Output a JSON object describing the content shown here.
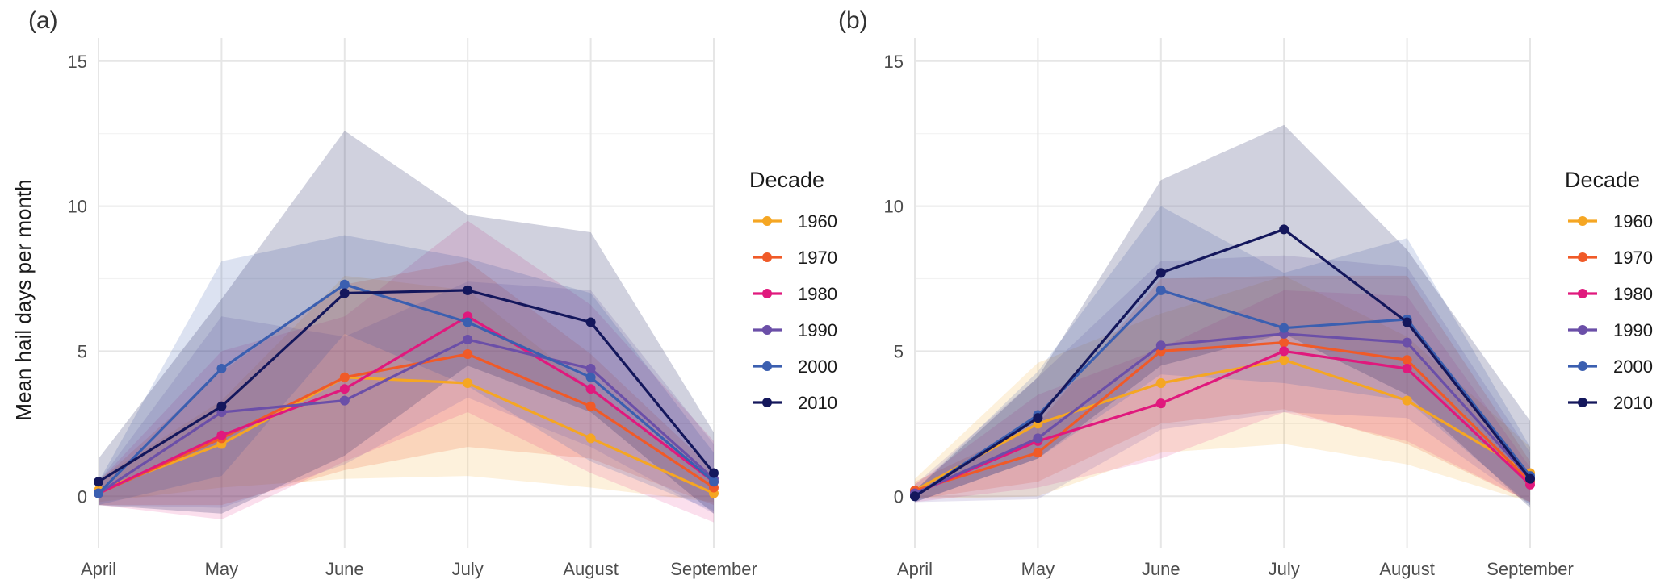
{
  "chart_data": [
    {
      "type": "line",
      "panel_label": "(a)",
      "categories": [
        "April",
        "May",
        "June",
        "July",
        "August",
        "September"
      ],
      "ylabel": "Mean hail days per month",
      "ylim": [
        -1.8,
        15.8
      ],
      "yticks": [
        0,
        5,
        10,
        15
      ],
      "legend_title": "Decade",
      "series": [
        {
          "name": "1960",
          "color": "#F5A623",
          "values": [
            0.2,
            1.8,
            4.1,
            3.9,
            2.0,
            0.1
          ],
          "lower": [
            -0.2,
            0.3,
            0.6,
            0.7,
            0.3,
            -0.2
          ],
          "upper": [
            0.6,
            3.3,
            7.6,
            7.1,
            3.7,
            0.6
          ]
        },
        {
          "name": "1970",
          "color": "#F05A28",
          "values": [
            0.1,
            2.0,
            4.1,
            4.9,
            3.1,
            0.3
          ],
          "lower": [
            -0.3,
            -0.3,
            0.9,
            1.7,
            1.3,
            -0.3
          ],
          "upper": [
            0.5,
            4.3,
            7.3,
            8.1,
            4.9,
            0.9
          ]
        },
        {
          "name": "1980",
          "color": "#E0197D",
          "values": [
            0.1,
            2.1,
            3.7,
            6.2,
            3.7,
            0.5
          ],
          "lower": [
            -0.3,
            -0.8,
            1.2,
            2.9,
            0.8,
            -0.9
          ],
          "upper": [
            0.5,
            5.0,
            6.2,
            9.5,
            6.6,
            1.9
          ]
        },
        {
          "name": "1990",
          "color": "#6B4FA8",
          "values": [
            0.1,
            2.9,
            3.3,
            5.4,
            4.4,
            0.6
          ],
          "lower": [
            -0.3,
            -0.4,
            1.1,
            3.4,
            1.7,
            -0.6
          ],
          "upper": [
            0.5,
            6.2,
            5.5,
            7.4,
            7.1,
            1.8
          ]
        },
        {
          "name": "2000",
          "color": "#3B5FB0",
          "values": [
            0.1,
            4.4,
            7.3,
            6.0,
            4.1,
            0.5
          ],
          "lower": [
            -0.3,
            0.7,
            5.6,
            3.8,
            1.2,
            -0.5
          ],
          "upper": [
            0.5,
            8.1,
            9.0,
            8.2,
            7.0,
            1.5
          ]
        },
        {
          "name": "2010",
          "color": "#14175C",
          "values": [
            0.5,
            3.1,
            7.0,
            7.1,
            6.0,
            0.8
          ],
          "lower": [
            -0.3,
            -0.6,
            1.4,
            4.5,
            2.9,
            -0.6
          ],
          "upper": [
            1.3,
            6.8,
            12.6,
            9.7,
            9.1,
            2.2
          ]
        }
      ]
    },
    {
      "type": "line",
      "panel_label": "(b)",
      "categories": [
        "April",
        "May",
        "June",
        "July",
        "August",
        "September"
      ],
      "ylabel": "",
      "ylim": [
        -1.8,
        15.8
      ],
      "yticks": [
        0,
        5,
        10,
        15
      ],
      "legend_title": "Decade",
      "series": [
        {
          "name": "1960",
          "color": "#F5A623",
          "values": [
            0.2,
            2.5,
            3.9,
            4.7,
            3.3,
            0.8
          ],
          "lower": [
            -0.1,
            0.0,
            1.5,
            1.8,
            1.1,
            -0.2
          ],
          "upper": [
            0.6,
            4.6,
            6.3,
            7.6,
            5.5,
            1.7
          ]
        },
        {
          "name": "1970",
          "color": "#F05A28",
          "values": [
            0.2,
            1.5,
            5.0,
            5.3,
            4.7,
            0.5
          ],
          "lower": [
            -0.1,
            0.5,
            2.5,
            3.0,
            1.8,
            -0.2
          ],
          "upper": [
            0.5,
            2.5,
            7.5,
            7.6,
            7.6,
            1.2
          ]
        },
        {
          "name": "1980",
          "color": "#E0197D",
          "values": [
            0.1,
            1.9,
            3.2,
            5.0,
            4.4,
            0.4
          ],
          "lower": [
            -0.2,
            0.3,
            1.3,
            2.9,
            1.9,
            -0.2
          ],
          "upper": [
            0.4,
            3.5,
            5.1,
            7.1,
            6.9,
            1.0
          ]
        },
        {
          "name": "1990",
          "color": "#6B4FA8",
          "values": [
            0.1,
            2.0,
            5.2,
            5.6,
            5.3,
            0.6
          ],
          "lower": [
            -0.2,
            -0.1,
            2.3,
            2.9,
            2.7,
            -0.3
          ],
          "upper": [
            0.4,
            4.1,
            8.1,
            8.3,
            7.9,
            1.5
          ]
        },
        {
          "name": "2000",
          "color": "#3B5FB0",
          "values": [
            0.0,
            2.8,
            7.1,
            5.8,
            6.1,
            0.7
          ],
          "lower": [
            -0.2,
            1.3,
            4.2,
            3.9,
            3.3,
            -0.3
          ],
          "upper": [
            0.2,
            4.3,
            10.0,
            7.7,
            8.9,
            1.7
          ]
        },
        {
          "name": "2010",
          "color": "#14175C",
          "values": [
            0.0,
            2.7,
            7.7,
            9.2,
            6.0,
            0.6
          ],
          "lower": [
            -0.2,
            1.3,
            4.5,
            5.6,
            3.5,
            -0.4
          ],
          "upper": [
            0.2,
            4.1,
            10.9,
            12.8,
            8.5,
            2.6
          ]
        }
      ]
    }
  ]
}
